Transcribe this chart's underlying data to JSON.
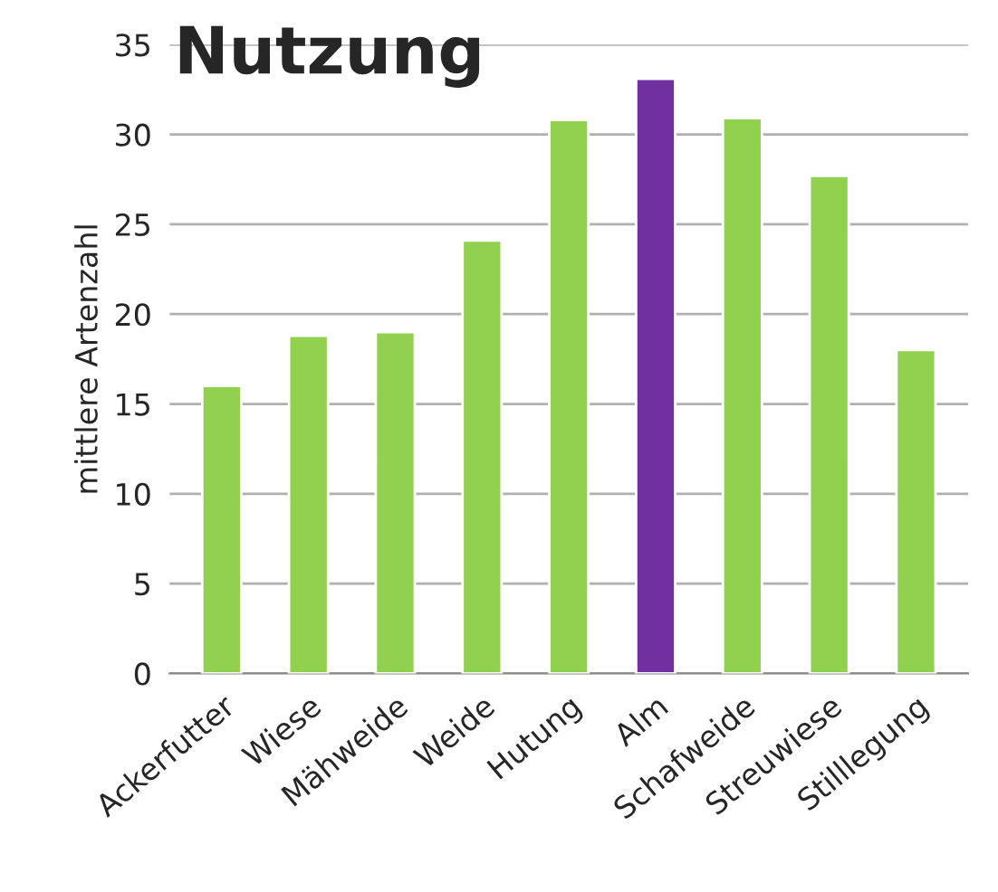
{
  "chart_data": {
    "type": "bar",
    "title": "Nutzung",
    "ylabel": "mittlere Artenzahl",
    "categories": [
      "Ackerfutter",
      "Wiese",
      "Mähweide",
      "Weide",
      "Hutung",
      "Alm",
      "Schafweide",
      "Streuwiese",
      "Stilllegung"
    ],
    "values": [
      16.0,
      18.8,
      19.0,
      24.1,
      30.8,
      33.1,
      30.9,
      27.7,
      18.0
    ],
    "colors": [
      "#92d050",
      "#92d050",
      "#92d050",
      "#92d050",
      "#92d050",
      "#7030a0",
      "#92d050",
      "#92d050",
      "#92d050"
    ],
    "ylim": [
      0,
      35
    ],
    "yticks": [
      0,
      5,
      10,
      15,
      20,
      25,
      30,
      35
    ],
    "grid": "y"
  }
}
